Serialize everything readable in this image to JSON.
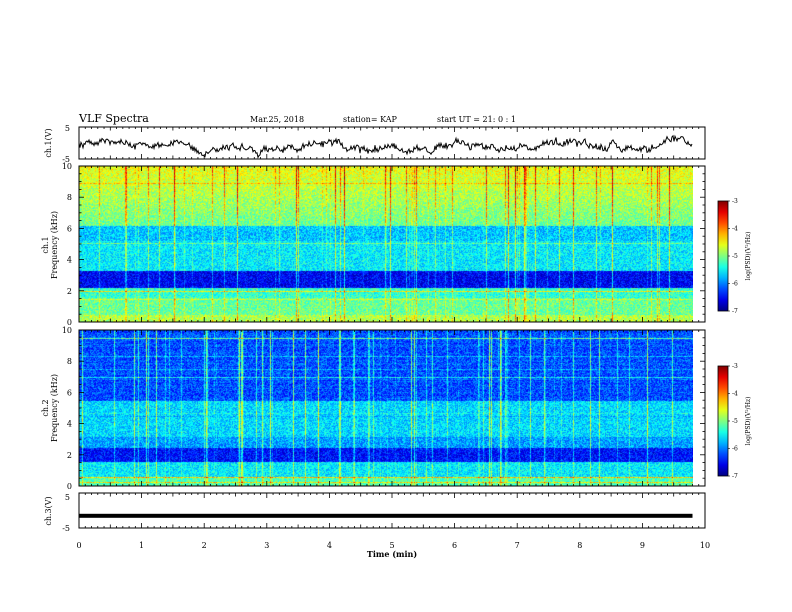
{
  "header": {
    "title": "VLF Spectra",
    "date": "Mar.25, 2018",
    "station": "station= KAP",
    "start": "start  UT =  21: 0  : 1"
  },
  "chart_data": [
    {
      "type": "line",
      "ylabel": "ch.1(V)",
      "yticks": [
        "5",
        "-5"
      ],
      "ylim": [
        -5,
        5
      ],
      "series": [
        {
          "values_note": "",
          "style": "noisy",
          "mean": -0.8,
          "amplitude": 1.6
        }
      ]
    },
    {
      "type": "heatmap",
      "ylabel_line1": "ch.1",
      "ylabel_line2": "Frequency (kHz)",
      "yticks": [
        "0",
        "2",
        "4",
        "6",
        "8",
        "10"
      ],
      "ylim": [
        0,
        10
      ],
      "colorbar": {
        "label": "log(PSD)(V²/Hz)",
        "ticks": [
          "-3",
          "-4",
          "-5",
          "-6",
          "-7"
        ],
        "range": [
          -7,
          -3
        ]
      }
    },
    {
      "type": "heatmap",
      "ylabel_line1": "ch.2",
      "ylabel_line2": "Frequency (kHz)",
      "yticks": [
        "0",
        "2",
        "4",
        "6",
        "8",
        "10"
      ],
      "ylim": [
        0,
        10
      ],
      "colorbar": {
        "label": "log(PSD)(V²/Hz)",
        "ticks": [
          "-3",
          "-4",
          "-5",
          "-6",
          "-7"
        ],
        "range": [
          -7,
          -3
        ]
      }
    },
    {
      "type": "line",
      "ylabel": "ch.3(V)",
      "yticks": [
        "5",
        "-5"
      ],
      "ylim": [
        -5,
        5
      ],
      "series": [
        {
          "style": "flat",
          "value": -1.5
        }
      ]
    }
  ],
  "xaxis": {
    "label": "Time  (min)",
    "ticks": [
      "0",
      "1",
      "2",
      "3",
      "4",
      "5",
      "6",
      "7",
      "8",
      "9",
      "10"
    ],
    "range": [
      0,
      10
    ],
    "data_end": 9.8
  }
}
